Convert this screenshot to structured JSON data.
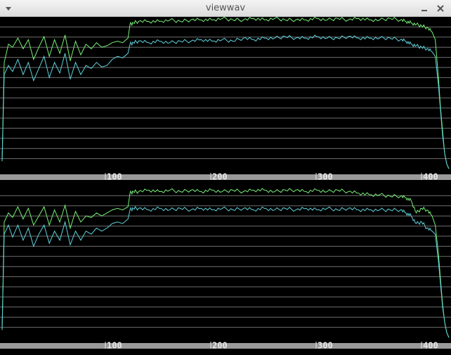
{
  "window": {
    "title": "viewwav"
  },
  "icons": {
    "menu": "chevron-down-icon",
    "minimize": "minimize-icon",
    "close": "close-icon"
  },
  "colors": {
    "background": "#000000",
    "grid": "#6e6e6e",
    "axis_band": "#9a9a9a",
    "series_green": "#78f078",
    "series_cyan": "#5fd2dc",
    "tick_text": "#e8e8e8"
  },
  "chart_data": [
    {
      "type": "line",
      "name": "channel-1",
      "x_ticks": [
        "100",
        "200",
        "300",
        "400"
      ],
      "xlim": [
        0,
        426
      ],
      "ylim": [
        0,
        1
      ],
      "grid": true,
      "series": [
        {
          "color": "green",
          "x": [
            0,
            2,
            6,
            10,
            15,
            20,
            25,
            30,
            35,
            40,
            45,
            50,
            55,
            60,
            65,
            70,
            75,
            80,
            85,
            90,
            95,
            100,
            105,
            110,
            115,
            120,
            122,
            125,
            130,
            140,
            150,
            160,
            170,
            180,
            190,
            200,
            210,
            220,
            230,
            240,
            250,
            260,
            270,
            280,
            290,
            300,
            310,
            320,
            330,
            340,
            350,
            360,
            370,
            380,
            385,
            390,
            395,
            400,
            405,
            410,
            413,
            416,
            418,
            420,
            422,
            424,
            426
          ],
          "y": [
            0.05,
            0.7,
            0.82,
            0.8,
            0.86,
            0.79,
            0.85,
            0.72,
            0.8,
            0.87,
            0.74,
            0.85,
            0.76,
            0.88,
            0.71,
            0.84,
            0.75,
            0.82,
            0.79,
            0.83,
            0.8,
            0.81,
            0.83,
            0.84,
            0.83,
            0.86,
            0.95,
            0.96,
            0.97,
            0.97,
            0.97,
            0.98,
            0.97,
            0.98,
            0.98,
            0.98,
            0.99,
            0.98,
            0.98,
            0.99,
            0.98,
            0.99,
            0.98,
            0.98,
            0.98,
            0.99,
            0.98,
            0.99,
            0.98,
            0.99,
            0.98,
            0.98,
            0.99,
            0.98,
            0.97,
            0.96,
            0.95,
            0.94,
            0.93,
            0.9,
            0.85,
            0.6,
            0.4,
            0.25,
            0.1,
            0.03,
            0.0
          ]
        },
        {
          "color": "cyan",
          "x": [
            0,
            2,
            6,
            10,
            15,
            20,
            25,
            30,
            35,
            40,
            45,
            50,
            55,
            60,
            65,
            70,
            75,
            80,
            85,
            90,
            95,
            100,
            105,
            110,
            115,
            120,
            122,
            125,
            130,
            140,
            150,
            160,
            170,
            180,
            190,
            200,
            210,
            220,
            230,
            240,
            250,
            260,
            270,
            280,
            290,
            300,
            310,
            320,
            330,
            340,
            350,
            360,
            370,
            380,
            385,
            390,
            395,
            400,
            405,
            410,
            413,
            416,
            418,
            420,
            422,
            424,
            426
          ],
          "y": [
            0.05,
            0.62,
            0.68,
            0.64,
            0.72,
            0.62,
            0.7,
            0.58,
            0.66,
            0.74,
            0.6,
            0.7,
            0.63,
            0.76,
            0.59,
            0.7,
            0.62,
            0.68,
            0.66,
            0.7,
            0.67,
            0.68,
            0.72,
            0.74,
            0.73,
            0.76,
            0.82,
            0.83,
            0.84,
            0.83,
            0.84,
            0.83,
            0.84,
            0.84,
            0.85,
            0.84,
            0.85,
            0.84,
            0.86,
            0.85,
            0.86,
            0.86,
            0.87,
            0.86,
            0.86,
            0.87,
            0.86,
            0.86,
            0.87,
            0.86,
            0.86,
            0.86,
            0.86,
            0.85,
            0.84,
            0.82,
            0.81,
            0.8,
            0.79,
            0.77,
            0.74,
            0.55,
            0.38,
            0.22,
            0.1,
            0.03,
            0.0
          ]
        }
      ]
    },
    {
      "type": "line",
      "name": "channel-2",
      "x_ticks": [
        "100",
        "200",
        "300",
        "400"
      ],
      "xlim": [
        0,
        426
      ],
      "ylim": [
        0,
        1
      ],
      "grid": true,
      "series": [
        {
          "color": "green",
          "x": [
            0,
            2,
            6,
            10,
            15,
            20,
            25,
            30,
            35,
            40,
            45,
            50,
            55,
            60,
            65,
            70,
            75,
            80,
            85,
            90,
            95,
            100,
            105,
            110,
            115,
            120,
            122,
            125,
            130,
            140,
            150,
            160,
            170,
            180,
            190,
            200,
            210,
            220,
            230,
            240,
            250,
            260,
            270,
            280,
            290,
            300,
            310,
            320,
            330,
            340,
            350,
            360,
            370,
            380,
            385,
            390,
            395,
            400,
            405,
            410,
            413,
            416,
            418,
            420,
            422,
            424,
            426
          ],
          "y": [
            0.05,
            0.76,
            0.82,
            0.79,
            0.86,
            0.78,
            0.85,
            0.74,
            0.8,
            0.86,
            0.74,
            0.84,
            0.76,
            0.87,
            0.72,
            0.83,
            0.76,
            0.8,
            0.79,
            0.82,
            0.8,
            0.82,
            0.84,
            0.85,
            0.84,
            0.86,
            0.95,
            0.96,
            0.96,
            0.97,
            0.96,
            0.97,
            0.96,
            0.97,
            0.96,
            0.97,
            0.96,
            0.97,
            0.96,
            0.97,
            0.97,
            0.96,
            0.97,
            0.97,
            0.96,
            0.97,
            0.96,
            0.97,
            0.96,
            0.95,
            0.94,
            0.94,
            0.93,
            0.93,
            0.92,
            0.9,
            0.82,
            0.85,
            0.84,
            0.8,
            0.74,
            0.55,
            0.38,
            0.22,
            0.1,
            0.03,
            0.0
          ]
        },
        {
          "color": "cyan",
          "x": [
            0,
            2,
            6,
            10,
            15,
            20,
            25,
            30,
            35,
            40,
            45,
            50,
            55,
            60,
            65,
            70,
            75,
            80,
            85,
            90,
            95,
            100,
            105,
            110,
            115,
            120,
            122,
            125,
            130,
            140,
            150,
            160,
            170,
            180,
            190,
            200,
            210,
            220,
            230,
            240,
            250,
            260,
            270,
            280,
            290,
            300,
            310,
            320,
            330,
            340,
            350,
            360,
            370,
            380,
            385,
            390,
            395,
            400,
            405,
            410,
            413,
            416,
            418,
            420,
            422,
            424,
            426
          ],
          "y": [
            0.05,
            0.68,
            0.74,
            0.66,
            0.74,
            0.64,
            0.72,
            0.6,
            0.68,
            0.74,
            0.62,
            0.7,
            0.64,
            0.76,
            0.61,
            0.7,
            0.64,
            0.7,
            0.68,
            0.72,
            0.7,
            0.72,
            0.75,
            0.76,
            0.75,
            0.78,
            0.84,
            0.85,
            0.85,
            0.84,
            0.85,
            0.84,
            0.85,
            0.84,
            0.85,
            0.84,
            0.85,
            0.84,
            0.85,
            0.84,
            0.85,
            0.84,
            0.85,
            0.84,
            0.85,
            0.84,
            0.85,
            0.84,
            0.85,
            0.84,
            0.84,
            0.84,
            0.84,
            0.84,
            0.82,
            0.8,
            0.75,
            0.76,
            0.72,
            0.7,
            0.68,
            0.5,
            0.35,
            0.2,
            0.1,
            0.03,
            0.0
          ]
        }
      ]
    }
  ]
}
